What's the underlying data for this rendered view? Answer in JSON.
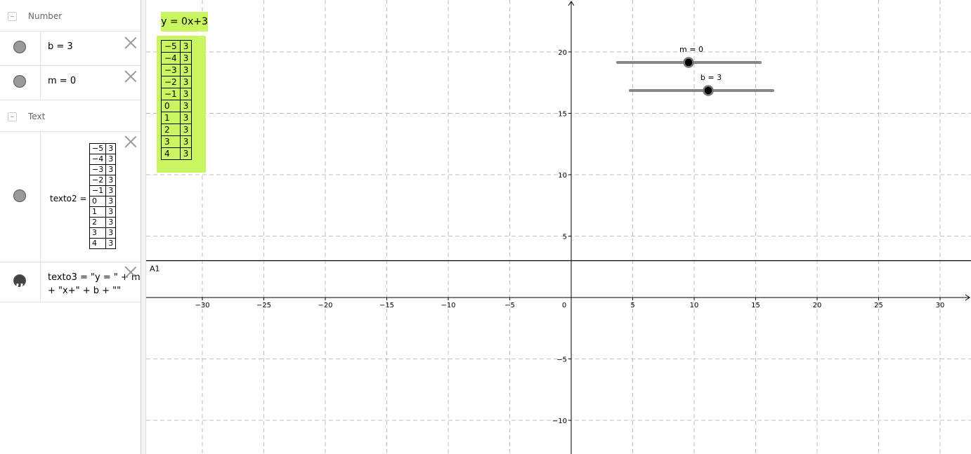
{
  "algebra": {
    "number_header": "Number",
    "b_item": "b = 3",
    "m_item": "m = 0",
    "text_header": "Text",
    "texto2_label": "texto2 =",
    "texto3_lines": [
      "texto3 = \"y = \" + m",
      "+ \"x+\" + b + \"\""
    ]
  },
  "table": {
    "rows": [
      [
        "−5",
        "3"
      ],
      [
        "−4",
        "3"
      ],
      [
        "−3",
        "3"
      ],
      [
        "−2",
        "3"
      ],
      [
        "−1",
        "3"
      ],
      [
        "0",
        "3"
      ],
      [
        "1",
        "3"
      ],
      [
        "2",
        "3"
      ],
      [
        "3",
        "3"
      ],
      [
        "4",
        "3"
      ]
    ]
  },
  "graphics": {
    "equation_text": "y = 0x+3",
    "line_label": "A1",
    "sliders": [
      {
        "label": "m = 0",
        "value": 0
      },
      {
        "label": "b = 3",
        "value": 3
      }
    ],
    "xticks": [
      {
        "value": -30,
        "label": "−30"
      },
      {
        "value": -25,
        "label": "−25"
      },
      {
        "value": -20,
        "label": "−20"
      },
      {
        "value": -15,
        "label": "−15"
      },
      {
        "value": -10,
        "label": "−10"
      },
      {
        "value": -5,
        "label": "−5"
      },
      0,
      5,
      10,
      15,
      20,
      25,
      30
    ],
    "yticks": [
      {
        "value": -10,
        "label": "−10"
      },
      {
        "value": -5,
        "label": "−5"
      },
      5,
      10,
      15,
      20
    ]
  }
}
